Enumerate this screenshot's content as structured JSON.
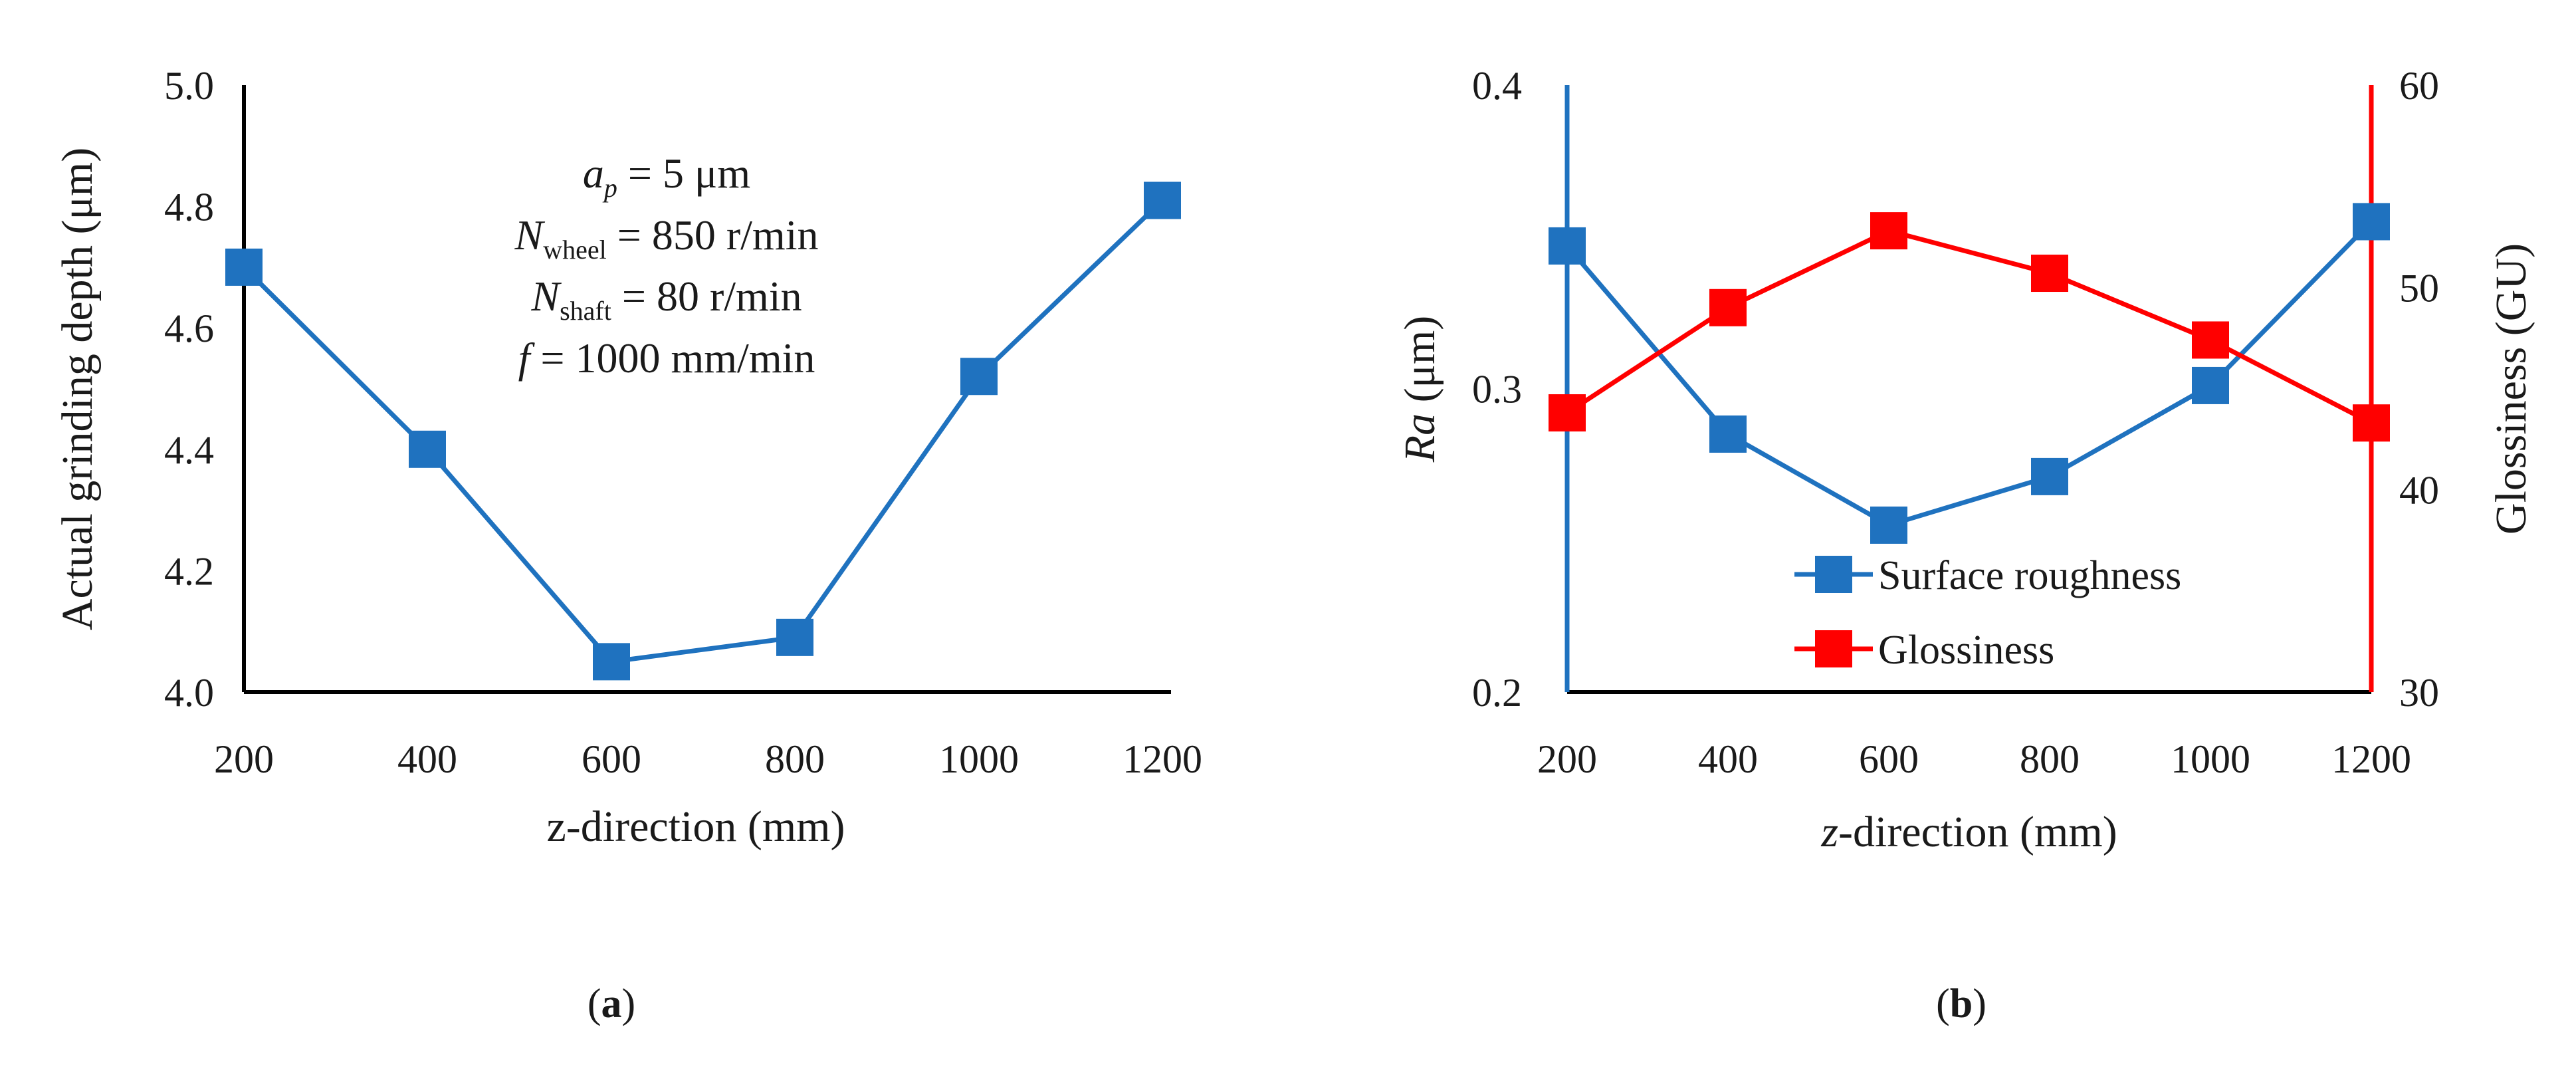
{
  "chart_data": [
    {
      "type": "line",
      "title": "",
      "caption": {
        "open": "(",
        "letter": "a",
        "close": ")"
      },
      "xlabel": "z-direction (mm)",
      "ylabel": "Actual grinding depth (μm)",
      "categories": [
        "200",
        "400",
        "600",
        "800",
        "1000",
        "1200"
      ],
      "ylim": [
        4.0,
        5.0
      ],
      "yticks": [
        "4.0",
        "4.2",
        "4.4",
        "4.6",
        "4.8",
        "5.0"
      ],
      "series": [
        {
          "name": "Actual grinding depth",
          "color": "#1f72bf",
          "values": [
            4.7,
            4.4,
            4.05,
            4.09,
            4.52,
            4.81
          ]
        }
      ],
      "annotation": {
        "line1": {
          "sym": "a",
          "sub": "p",
          "rest": " = 5 μm"
        },
        "line2": {
          "sym": "N",
          "sub": "wheel",
          "rest": " = 850 r/min"
        },
        "line3": {
          "sym": "N",
          "sub": "shaft",
          "rest": " = 80 r/min"
        },
        "line4": {
          "sym": "f",
          "rest": " = 1000 mm/min"
        }
      }
    },
    {
      "type": "line",
      "title": "",
      "caption": {
        "open": "(",
        "letter": "b",
        "close": ")"
      },
      "xlabel": {
        "italic": "z",
        "rest": "-direction (mm)"
      },
      "ylabel_left": {
        "italic": "Ra",
        "rest": " (μm)"
      },
      "ylabel_right": "Glossiness (GU)",
      "categories": [
        "200",
        "400",
        "600",
        "800",
        "1000",
        "1200"
      ],
      "ylim_left": [
        0.2,
        0.4
      ],
      "yticks_left": [
        "0.2",
        "0.3",
        "0.4"
      ],
      "ylim_right": [
        30,
        60
      ],
      "yticks_right": [
        "30",
        "40",
        "50",
        "60"
      ],
      "series": [
        {
          "name": "Surface roughness",
          "axis": "left",
          "color": "#1f72bf",
          "values": [
            0.347,
            0.285,
            0.255,
            0.271,
            0.301,
            0.355
          ]
        },
        {
          "name": "Glossiness",
          "axis": "right",
          "color": "#ff0000",
          "values": [
            43.8,
            49.0,
            52.8,
            50.7,
            47.4,
            43.3
          ]
        }
      ],
      "legend_position": "lower-center"
    }
  ]
}
